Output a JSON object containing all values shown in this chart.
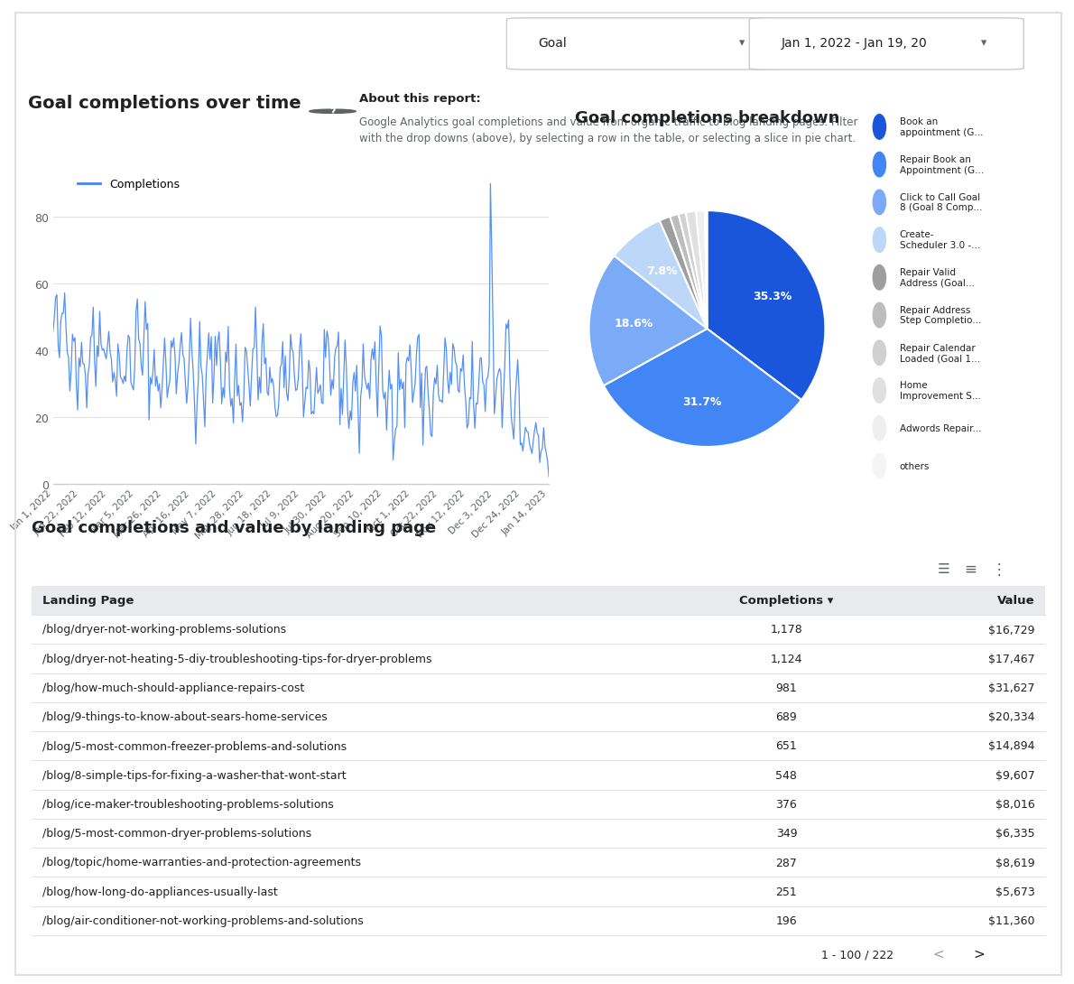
{
  "title_line": "Goal completions over time",
  "pie_title": "Goal completions breakdown",
  "table_title": "Goal completions and value by landing page",
  "header_text": "About this report:",
  "subheader_text": "Google Analytics goal completions and value from organic traffic to blog landing pages. Filter\nwith the drop downs (above), by selecting a row in the table, or selecting a slice in pie chart.",
  "dropdown1": "Goal",
  "dropdown2": "Jan 1, 2022 - Jan 19, 20",
  "line_color": "#4285f4",
  "line_label": "Completions",
  "yticks": [
    0,
    20,
    40,
    60,
    80
  ],
  "xtick_labels": [
    "Jan 1, 2022",
    "Jan 22, 2022",
    "Feb 12, 2022",
    "Mar 5, 2022",
    "Mar 26, 2022",
    "Apr 16, 2022",
    "May 7, 2022",
    "May 28, 2022",
    "Jun 18, 2022",
    "Jul 9, 2022",
    "Jul 30, 2022",
    "Aug 20, 2022",
    "Sep 10, 2022",
    "Oct 1, 2022",
    "Oct 22, 2022",
    "Nov 12, 2022",
    "Dec 3, 2022",
    "Dec 24, 2022",
    "Jan 14, 2023"
  ],
  "pie_values": [
    35.3,
    31.7,
    18.6,
    7.8,
    1.5,
    1.2,
    1.0,
    1.4,
    1.2,
    0.3
  ],
  "pie_colors": [
    "#1a56db",
    "#4285f4",
    "#7baaf7",
    "#bdd7f8",
    "#9e9e9e",
    "#bdbdbd",
    "#d0d0d0",
    "#e0e0e0",
    "#efefef",
    "#f5f5f5"
  ],
  "pie_labels_pct": [
    "35.3%",
    "31.7%",
    "18.6%",
    "7.8%"
  ],
  "pie_legend_labels": [
    "Book an\nappointment (G...",
    "Repair Book an\nAppointment (G...",
    "Click to Call Goal\n8 (Goal 8 Comp...",
    "Create-\nScheduler 3.0 -...",
    "Repair Valid\nAddress (Goal...",
    "Repair Address\nStep Completio...",
    "Repair Calendar\nLoaded (Goal 1...",
    "Home\nImprovement S...",
    "Adwords Repair...",
    "others"
  ],
  "table_headers": [
    "Landing Page",
    "Completions ▾",
    "Value"
  ],
  "table_data": [
    [
      "/blog/dryer-not-working-problems-solutions",
      "1,178",
      "$16,729"
    ],
    [
      "/blog/dryer-not-heating-5-diy-troubleshooting-tips-for-dryer-problems",
      "1,124",
      "$17,467"
    ],
    [
      "/blog/how-much-should-appliance-repairs-cost",
      "981",
      "$31,627"
    ],
    [
      "/blog/9-things-to-know-about-sears-home-services",
      "689",
      "$20,334"
    ],
    [
      "/blog/5-most-common-freezer-problems-and-solutions",
      "651",
      "$14,894"
    ],
    [
      "/blog/8-simple-tips-for-fixing-a-washer-that-wont-start",
      "548",
      "$9,607"
    ],
    [
      "/blog/ice-maker-troubleshooting-problems-solutions",
      "376",
      "$8,016"
    ],
    [
      "/blog/5-most-common-dryer-problems-solutions",
      "349",
      "$6,335"
    ],
    [
      "/blog/topic/home-warranties-and-protection-agreements",
      "287",
      "$8,619"
    ],
    [
      "/blog/how-long-do-appliances-usually-last",
      "251",
      "$5,673"
    ],
    [
      "/blog/air-conditioner-not-working-problems-and-solutions",
      "196",
      "$11,360"
    ]
  ],
  "pagination": "1 - 100 / 222",
  "bg_color": "#ffffff",
  "text_color": "#202124",
  "grid_color": "#e0e0e0",
  "axis_label_color": "#5f6368",
  "header_bg": "#e8eaed",
  "separator_color": "#e0e0e0"
}
